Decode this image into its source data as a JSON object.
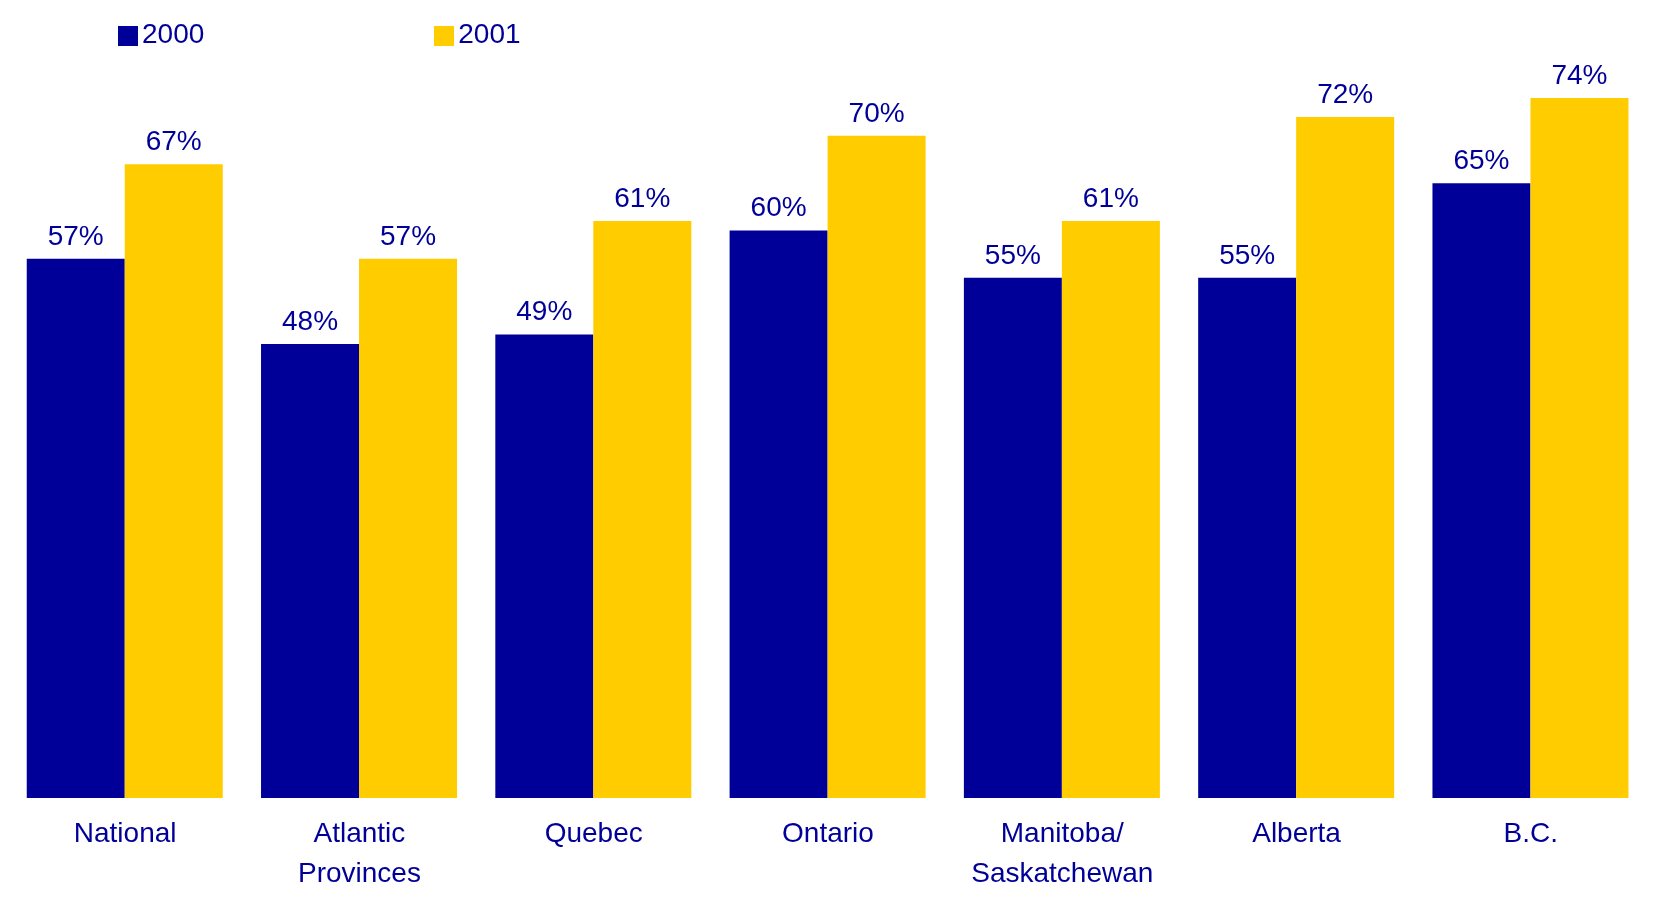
{
  "chart_data": {
    "type": "bar",
    "categories": [
      "National",
      "Atlantic Provinces",
      "Quebec",
      "Ontario",
      "Manitoba/ Saskatchewan",
      "Alberta",
      "B.C."
    ],
    "series": [
      {
        "name": "2000",
        "color": "#000099",
        "values": [
          57,
          48,
          49,
          60,
          55,
          55,
          65
        ],
        "value_labels": [
          "57%",
          "48%",
          "49%",
          "60%",
          "55%",
          "55%",
          "65%"
        ]
      },
      {
        "name": "2001",
        "color": "#ffcc00",
        "values": [
          67,
          57,
          61,
          70,
          61,
          72,
          74
        ],
        "value_labels": [
          "67%",
          "57%",
          "61%",
          "70%",
          "61%",
          "72%",
          "74%"
        ]
      }
    ],
    "legend": "top left",
    "grid": false
  }
}
